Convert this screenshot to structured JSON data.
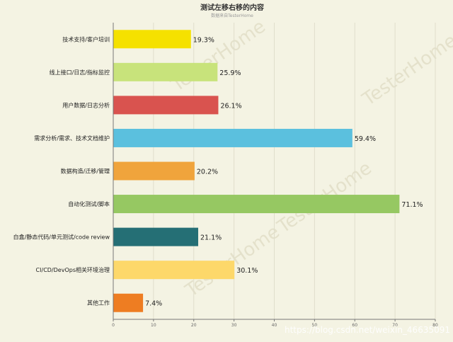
{
  "chart_data": {
    "type": "bar",
    "orientation": "horizontal",
    "title": "测试左移右移的内容",
    "subtitle": "数据来自TesterHome",
    "categories": [
      "技术支持/客户培训",
      "线上接口/日志/指标监控",
      "用户数据/日志分析",
      "需求分析/需求、技术文档维护",
      "数据构造/迁移/管理",
      "自动化测试/脚本",
      "白盒/静态代码/单元测试/code review",
      "CI/CD/DevOps相关环境治理",
      "其他工作"
    ],
    "values": [
      19.3,
      25.9,
      26.1,
      59.4,
      20.2,
      71.1,
      21.1,
      30.1,
      7.4
    ],
    "value_labels": [
      "19.3%",
      "25.9%",
      "26.1%",
      "59.4%",
      "20.2%",
      "71.1%",
      "21.1%",
      "30.1%",
      "7.4%"
    ],
    "colors": [
      "#f5e100",
      "#c8e37b",
      "#d9534f",
      "#5bc0de",
      "#f0a43c",
      "#96c862",
      "#256f75",
      "#fdd86a",
      "#ee7d22"
    ],
    "xlim": [
      0,
      80
    ],
    "xticks": [
      0,
      10,
      20,
      30,
      40,
      50,
      60,
      70,
      80
    ],
    "grid": true,
    "legend": "none"
  },
  "watermark": {
    "text": "TesterHome",
    "url": "https://blog.csdn.net/weixin_46635091"
  }
}
